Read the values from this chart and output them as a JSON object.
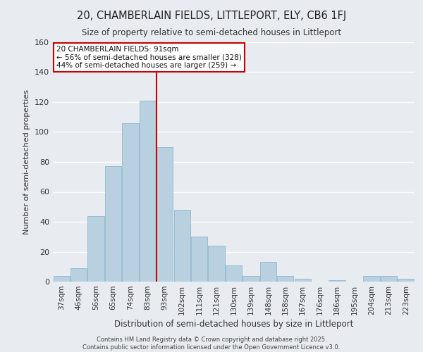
{
  "title1": "20, CHAMBERLAIN FIELDS, LITTLEPORT, ELY, CB6 1FJ",
  "title2": "Size of property relative to semi-detached houses in Littleport",
  "xlabel": "Distribution of semi-detached houses by size in Littleport",
  "ylabel": "Number of semi-detached properties",
  "categories": [
    "37sqm",
    "46sqm",
    "56sqm",
    "65sqm",
    "74sqm",
    "83sqm",
    "93sqm",
    "102sqm",
    "111sqm",
    "121sqm",
    "130sqm",
    "139sqm",
    "148sqm",
    "158sqm",
    "167sqm",
    "176sqm",
    "186sqm",
    "195sqm",
    "204sqm",
    "213sqm",
    "223sqm"
  ],
  "values": [
    4,
    9,
    44,
    77,
    106,
    121,
    90,
    48,
    30,
    24,
    11,
    4,
    13,
    4,
    2,
    0,
    1,
    0,
    4,
    4,
    2
  ],
  "bar_color": "#b8d0e0",
  "bar_edgecolor": "#8fb8d0",
  "vline_x_index": 6,
  "annotation_text": "20 CHAMBERLAIN FIELDS: 91sqm\n← 56% of semi-detached houses are smaller (328)\n44% of semi-detached houses are larger (259) →",
  "annotation_box_facecolor": "#ffffff",
  "annotation_box_edgecolor": "#cc0000",
  "ylim": [
    0,
    160
  ],
  "yticks": [
    0,
    20,
    40,
    60,
    80,
    100,
    120,
    140,
    160
  ],
  "footer": "Contains HM Land Registry data © Crown copyright and database right 2025.\nContains public sector information licensed under the Open Government Licence v3.0.",
  "bg_color": "#e8ecf0",
  "grid_color": "#ffffff",
  "vline_color": "#cc0000"
}
